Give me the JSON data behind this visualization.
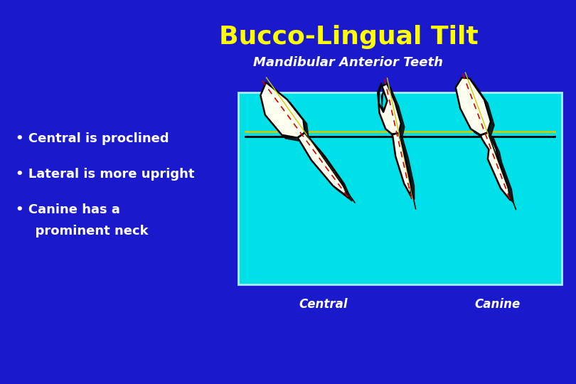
{
  "title": "Bucco-Lingual Tilt",
  "subtitle": "Mandibular Anterior Teeth",
  "bullet1": "• Central is proclined",
  "bullet2": "• Lateral is more upright",
  "bullet3": "• Canine has a",
  "bullet3b": "  prominent neck",
  "label_central": "Central",
  "label_canine": "Canine",
  "bg_color": "#1a1acc",
  "title_color": "#ffff00",
  "subtitle_color": "#ffffff",
  "bullet_color": "#ffffff",
  "box_color": "#00e0e8",
  "box_edge_color": "#aaeeff",
  "ref_line_color1": "#cccc00",
  "ref_line_color2": "#000000",
  "shadow_color": "#000000",
  "tooth_fill": "#fffff0",
  "tooth_outline": "#000000",
  "dashed_line_color": "#cc0000",
  "yellow_line_color": "#cccc00",
  "black_line_color": "#000000"
}
